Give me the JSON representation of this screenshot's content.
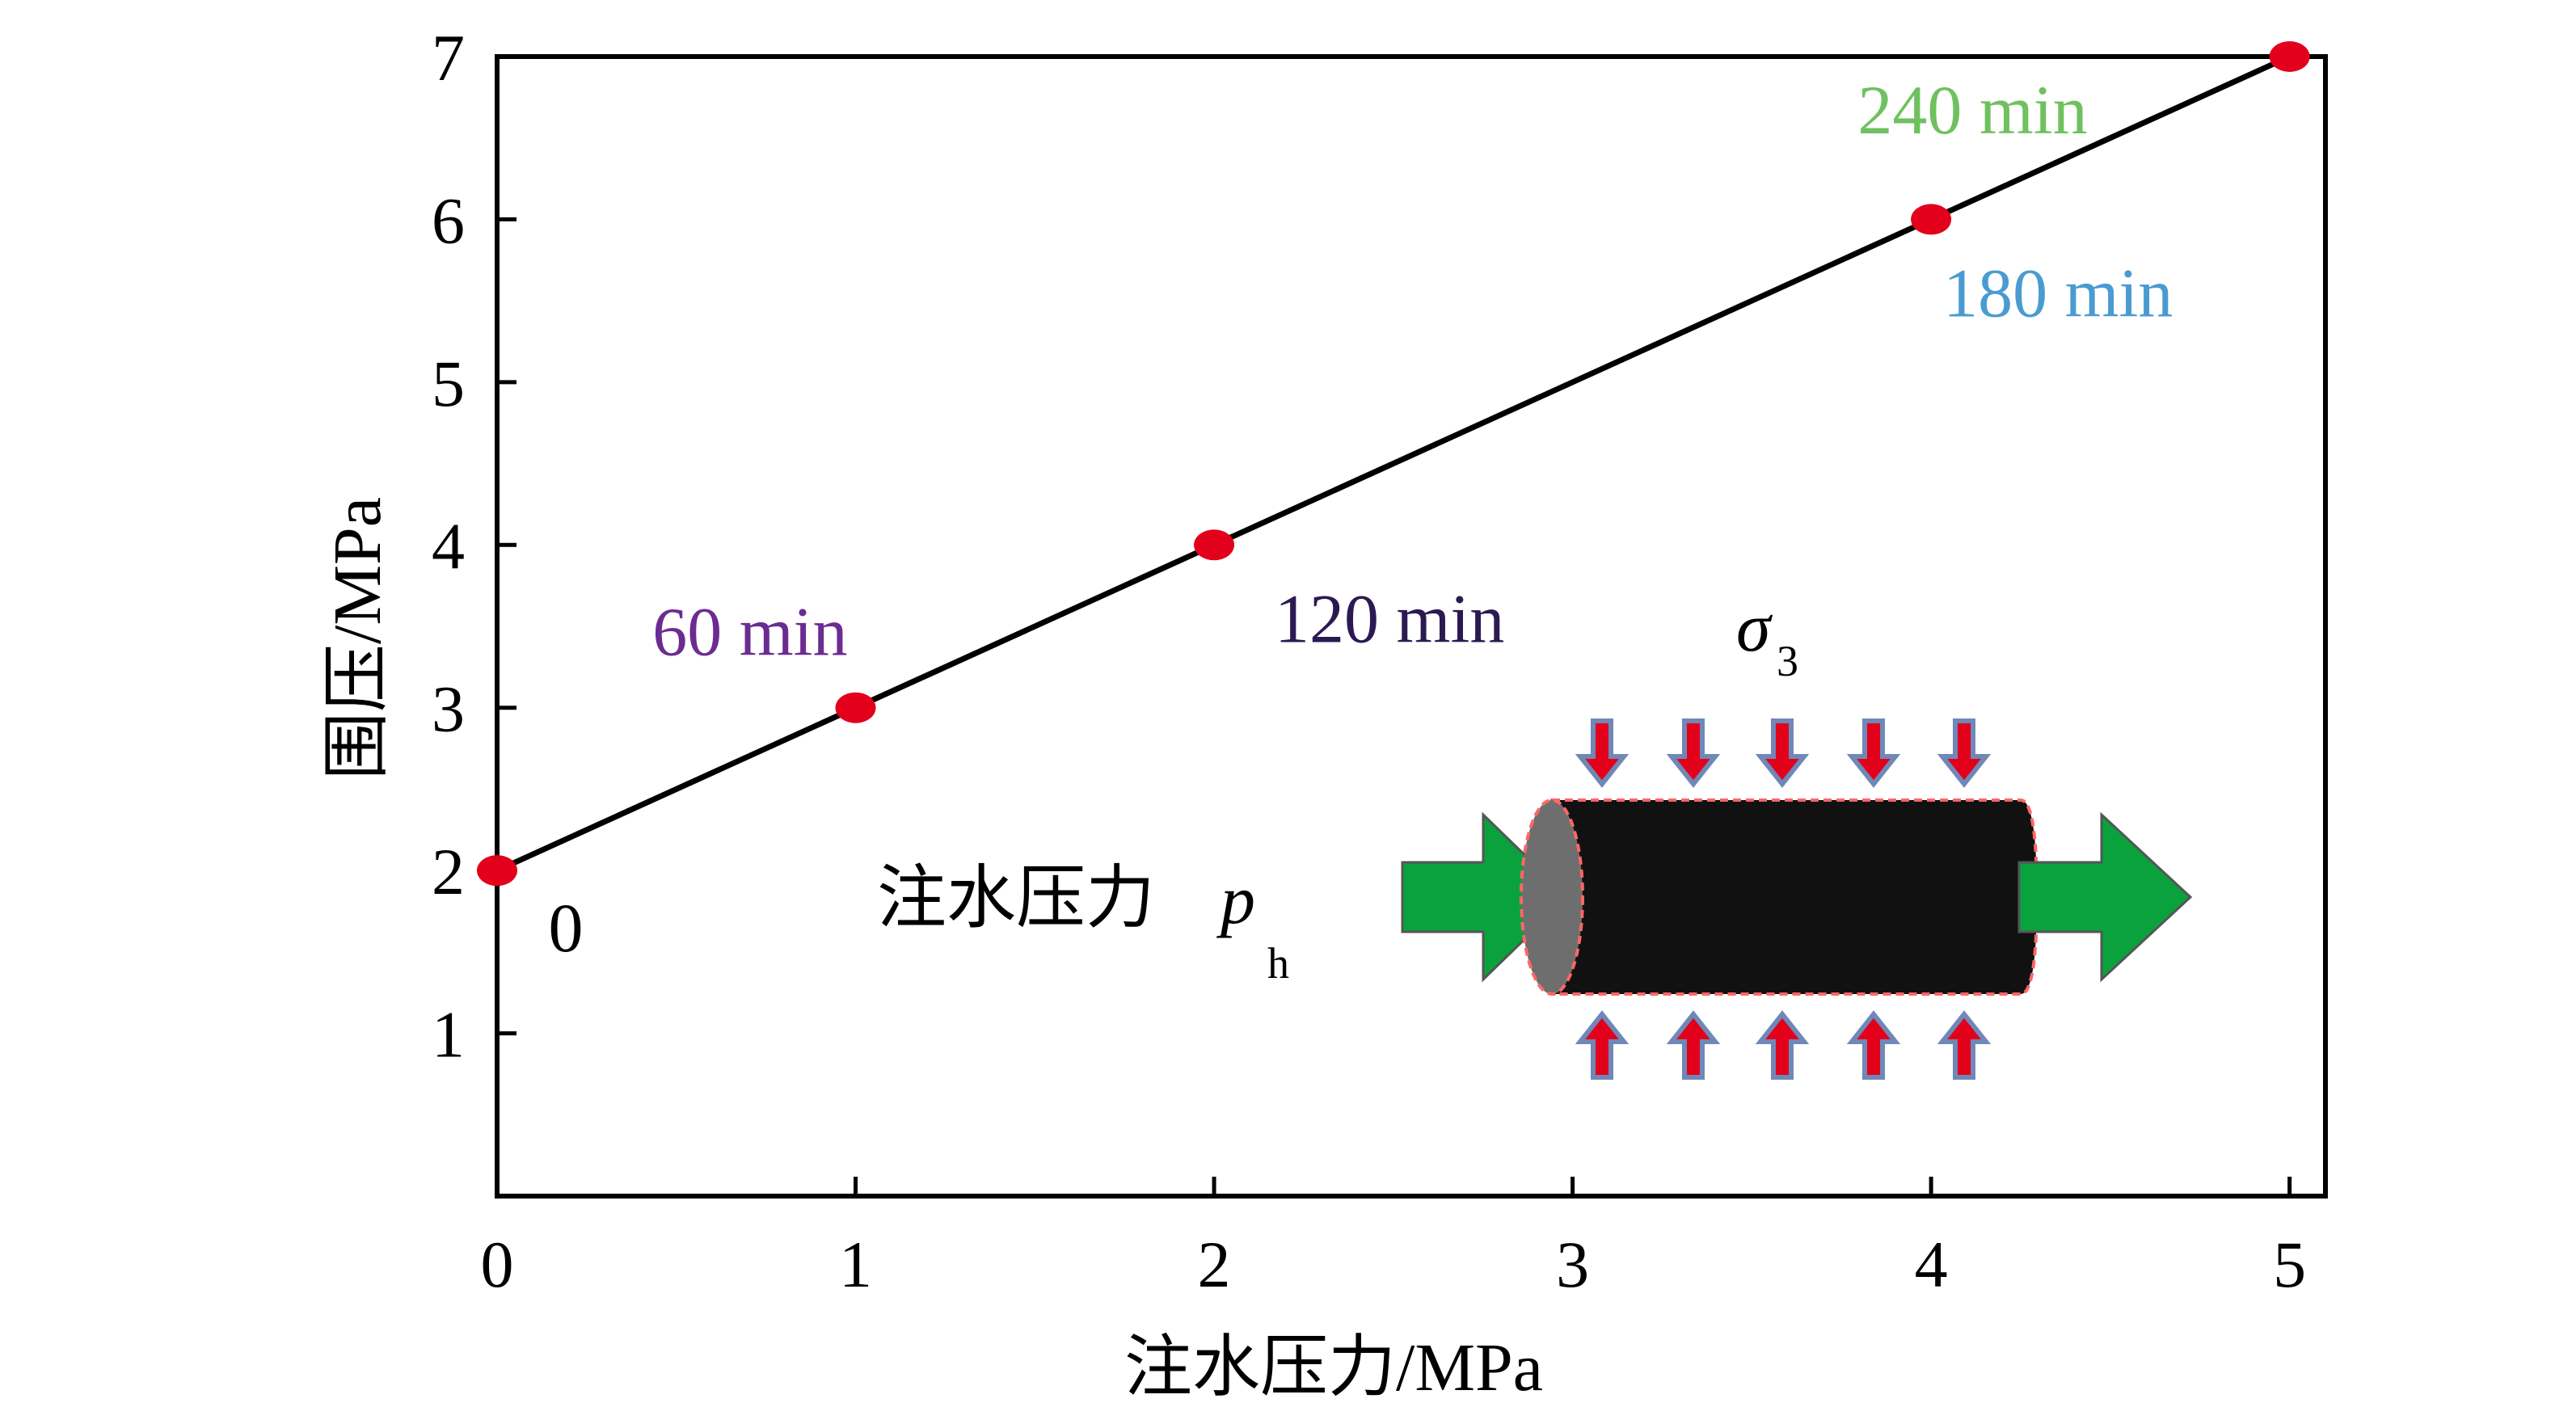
{
  "chart_data": {
    "type": "line",
    "title": "",
    "xlabel": "注水压力/MPa",
    "ylabel": "围压/MPa",
    "xlim": [
      0,
      5.1
    ],
    "ylim": [
      0,
      7
    ],
    "x_ticks": [
      0,
      1,
      2,
      3,
      4,
      5
    ],
    "y_ticks": [
      1,
      2,
      3,
      4,
      5,
      6,
      7
    ],
    "grid": false,
    "colors": {
      "line": "#000000",
      "marker": "#e3001b",
      "arrow_green": "#0aa23c",
      "small_arrow_fill": "#e3001b",
      "small_arrow_edge": "#6f88b7",
      "cylinder_body": "#111111",
      "cylinder_end": "#6e6e6e"
    },
    "series": [
      {
        "x": [
          0,
          1,
          2,
          4,
          5
        ],
        "y": [
          2,
          3,
          4,
          6,
          7
        ]
      }
    ],
    "point_labels": [
      {
        "text": "0",
        "x": 0,
        "y": 2,
        "color": "#000000"
      },
      {
        "text": "60 min",
        "x": 1,
        "y": 3,
        "color": "#6b2c91"
      },
      {
        "text": "120 min",
        "x": 2,
        "y": 4,
        "color": "#2b1a52"
      },
      {
        "text": "180 min",
        "x": 4,
        "y": 6,
        "color": "#4a9bd1"
      },
      {
        "text": "240 min",
        "x": 5,
        "y": 7,
        "color": "#6fc15f"
      }
    ],
    "inset": {
      "inlet_label": "注水压力",
      "inlet_symbol": "p",
      "inlet_subscript": "h",
      "stress_symbol": "σ",
      "stress_subscript": "3"
    }
  }
}
